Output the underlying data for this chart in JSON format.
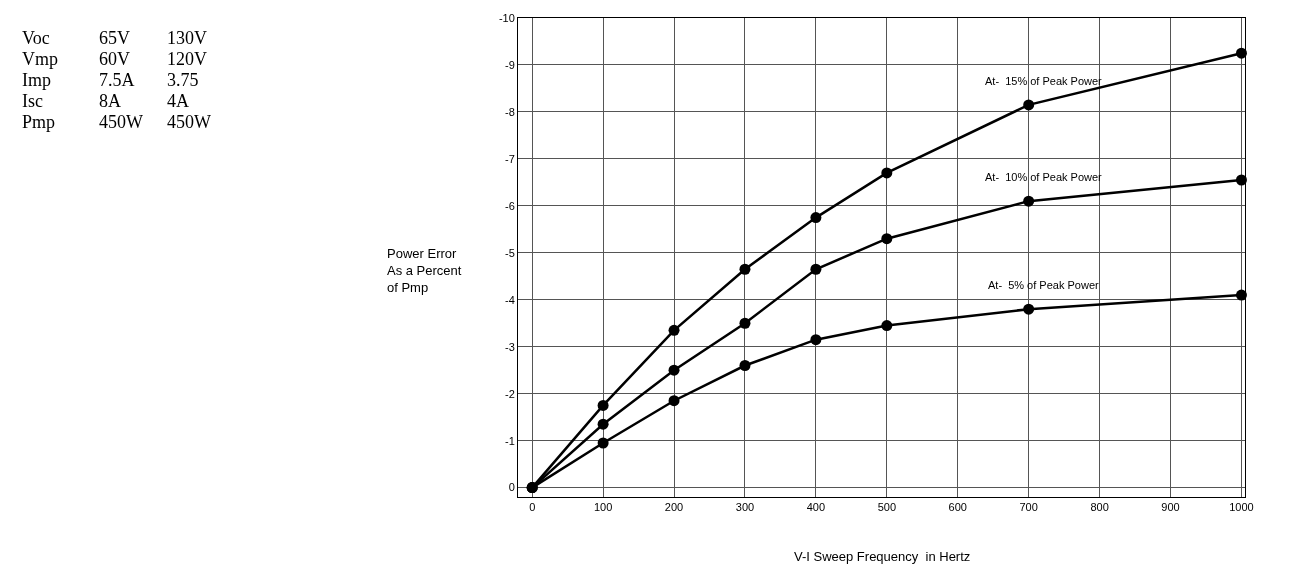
{
  "chart_data": {
    "type": "line",
    "xlabel": "V-I Sweep Frequency  in Hertz",
    "ylabel": "Power Error\nAs a Percent\nof Pmp",
    "x": [
      0,
      100,
      200,
      300,
      400,
      500,
      700,
      1000
    ],
    "series": [
      {
        "name": "At-  15% of Peak Power",
        "color": "#000000",
        "values": [
          0,
          -1.75,
          -3.35,
          -4.65,
          -5.75,
          -6.7,
          -8.15,
          -9.25
        ]
      },
      {
        "name": "At-  10% of Peak Power",
        "color": "#000000",
        "values": [
          0,
          -1.35,
          -2.5,
          -3.5,
          -4.65,
          -5.3,
          -6.1,
          -6.55
        ]
      },
      {
        "name": "At-  5% of Peak Power",
        "color": "#000000",
        "values": [
          0,
          -0.95,
          -1.85,
          -2.6,
          -3.15,
          -3.45,
          -3.8,
          -4.1
        ]
      }
    ],
    "xlim": [
      -20,
      1005
    ],
    "ylim": [
      0.2,
      -10
    ],
    "xticks": [
      0,
      100,
      200,
      300,
      400,
      500,
      600,
      700,
      800,
      900,
      1000
    ],
    "yticks": [
      0,
      -1,
      -2,
      -3,
      -4,
      -5,
      -6,
      -7,
      -8,
      -9,
      -10
    ],
    "grid": true,
    "legend": false,
    "marker": "circle",
    "line_style": "solid",
    "annotations": [
      "Voc",
      "65V",
      "130V",
      "Vmp",
      "60V",
      "120V",
      "Imp",
      "7.5A",
      "3.75",
      "Isc",
      "8A",
      "4A",
      "Pmp",
      "450W",
      "450W"
    ]
  }
}
